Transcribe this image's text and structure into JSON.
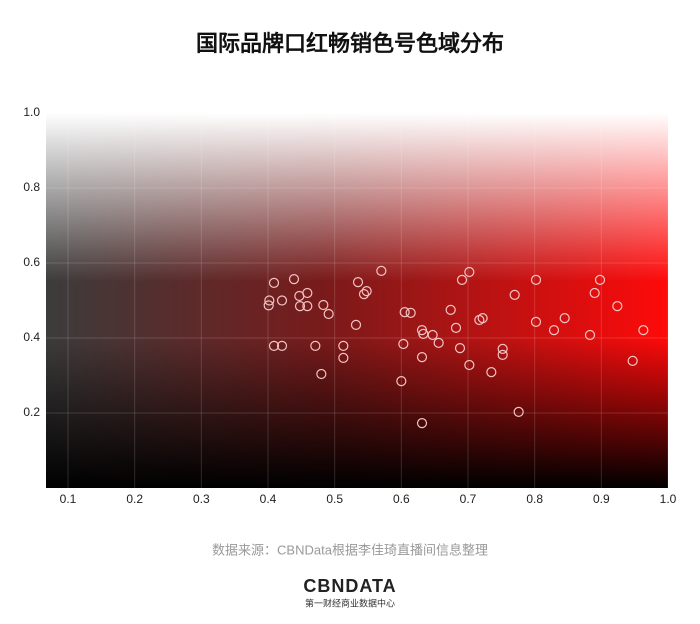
{
  "chart_data": {
    "type": "scatter",
    "title": "国际品牌口红畅销色号色域分布",
    "source": "数据来源：CBNData根据李佳琦直播间信息整理",
    "logo": "CBNDATA",
    "logo_subtitle": "第一财经商业数据中心",
    "color": "#f2c4c4",
    "xlim": [
      0.067,
      1.0
    ],
    "ylim": [
      0,
      1.0
    ],
    "xticks": [
      0.1,
      0.2,
      0.3,
      0.4,
      0.5,
      0.6,
      0.7,
      0.8,
      0.9,
      {
        "value": 1.0,
        "label": "1.0"
      }
    ],
    "yticks": [
      0.2,
      0.4,
      0.6,
      0.8,
      {
        "value": 1.0,
        "label": "1.0"
      }
    ],
    "grid": true,
    "x": [
      0.409,
      0.402,
      0.401,
      0.421,
      0.439,
      0.447,
      0.459,
      0.448,
      0.459,
      0.409,
      0.421,
      0.471,
      0.483,
      0.491,
      0.48,
      0.513,
      0.513,
      0.532,
      0.535,
      0.544,
      0.548,
      0.57,
      0.605,
      0.614,
      0.603,
      0.631,
      0.631,
      0.633,
      0.647,
      0.656,
      0.674,
      0.682,
      0.688,
      0.691,
      0.702,
      0.702,
      0.717,
      0.722,
      0.6,
      0.631,
      0.735,
      0.752,
      0.752,
      0.77,
      0.776,
      0.802,
      0.802,
      0.829,
      0.845,
      0.883,
      0.89,
      0.898,
      0.924,
      0.947,
      0.963
    ],
    "y": [
      0.547,
      0.5,
      0.487,
      0.5,
      0.557,
      0.512,
      0.52,
      0.485,
      0.485,
      0.379,
      0.379,
      0.379,
      0.488,
      0.464,
      0.304,
      0.379,
      0.347,
      0.435,
      0.549,
      0.517,
      0.525,
      0.579,
      0.469,
      0.467,
      0.384,
      0.421,
      0.349,
      0.411,
      0.408,
      0.387,
      0.475,
      0.427,
      0.373,
      0.555,
      0.576,
      0.328,
      0.448,
      0.453,
      0.285,
      0.173,
      0.309,
      0.371,
      0.355,
      0.515,
      0.203,
      0.555,
      0.443,
      0.421,
      0.453,
      0.408,
      0.52,
      0.555,
      0.485,
      0.339,
      0.421
    ]
  }
}
